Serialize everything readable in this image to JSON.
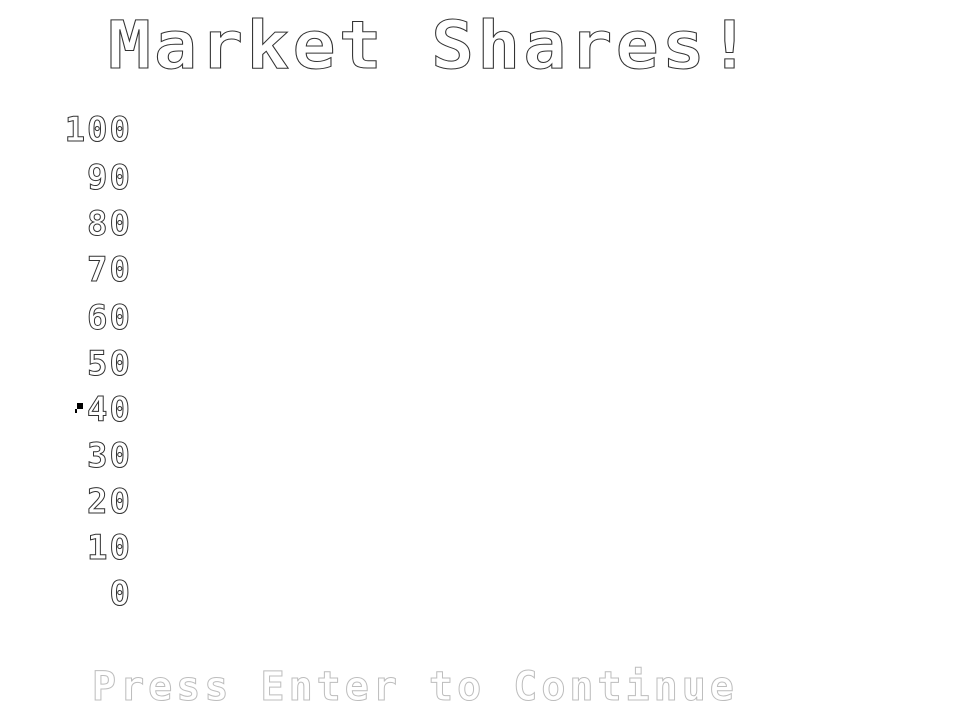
{
  "screen": {
    "title": "Market Shares!",
    "prompt": "Press Enter to Continue"
  },
  "chart_data": {
    "type": "bar",
    "title": "Market Shares!",
    "ylim": [
      0,
      100
    ],
    "y_ticks": [
      "100",
      "90",
      "80",
      "70",
      "60",
      "50",
      "40",
      "30",
      "20",
      "10",
      "0"
    ],
    "categories": [],
    "values": []
  },
  "colors": {
    "background": "#ffffff",
    "outline": "#333333",
    "prompt_outline": "#bdbdbd",
    "cursor": "#000000"
  }
}
